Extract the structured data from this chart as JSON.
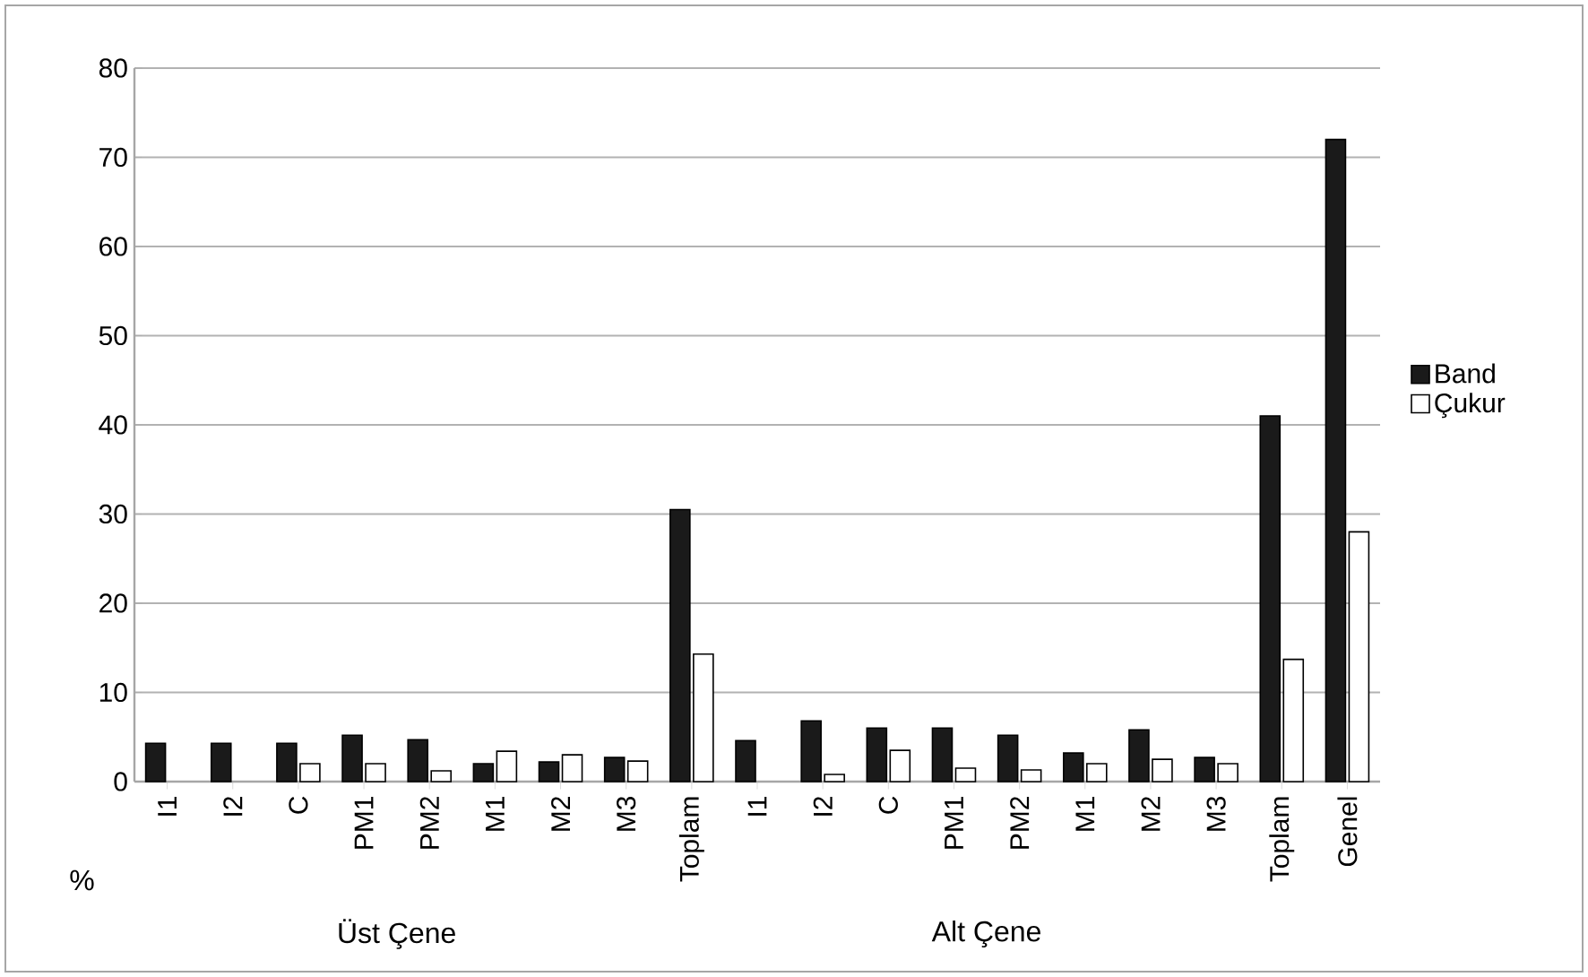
{
  "chart_data": {
    "type": "bar",
    "categories": [
      "I1",
      "I2",
      "C",
      "PM1",
      "PM2",
      "M1",
      "M2",
      "M3",
      "Toplam",
      "I1",
      "I2",
      "C",
      "PM1",
      "PM2",
      "M1",
      "M2",
      "M3",
      "Toplam",
      "Genel"
    ],
    "series": [
      {
        "name": "Band",
        "color": "#1a1a1a",
        "values": [
          4.3,
          4.3,
          4.3,
          5.2,
          4.7,
          2,
          2.2,
          2.7,
          30.5,
          4.6,
          6.8,
          6,
          6,
          5.2,
          3.2,
          5.8,
          2.7,
          41,
          72
        ]
      },
      {
        "name": "Çukur",
        "color": "#ffffff",
        "values": [
          0,
          0,
          2,
          2,
          1.2,
          3.4,
          3,
          2.3,
          14.3,
          0,
          0.8,
          3.5,
          1.5,
          1.3,
          2,
          2.5,
          2,
          13.7,
          28
        ]
      }
    ],
    "ylim": [
      0,
      80
    ],
    "yticks": [
      0,
      10,
      20,
      30,
      40,
      50,
      60,
      70,
      80
    ],
    "grid": "y",
    "legend": "right",
    "annotations": [
      "%",
      "Üst Çene",
      "Alt  Çene"
    ]
  }
}
